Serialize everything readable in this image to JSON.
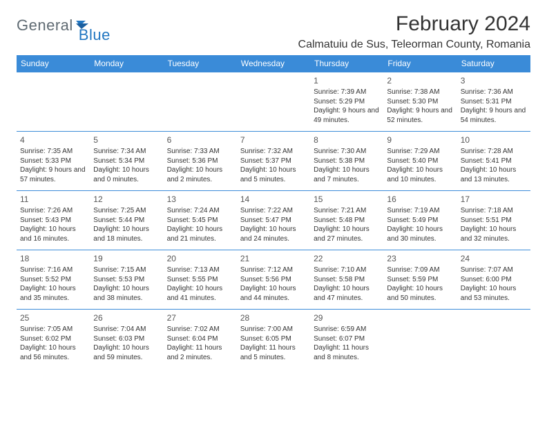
{
  "logo": {
    "part1": "General",
    "part2": "Blue"
  },
  "title": "February 2024",
  "location": "Calmatuiu de Sus, Teleorman County, Romania",
  "colors": {
    "header_bg": "#3a8bd8",
    "header_fg": "#ffffff",
    "border": "#3a8bd8",
    "logo_gray": "#5f6a72",
    "logo_blue": "#2176c1",
    "text": "#333333",
    "background": "#ffffff"
  },
  "day_headers": [
    "Sunday",
    "Monday",
    "Tuesday",
    "Wednesday",
    "Thursday",
    "Friday",
    "Saturday"
  ],
  "weeks": [
    [
      null,
      null,
      null,
      null,
      {
        "n": "1",
        "sunrise": "7:39 AM",
        "sunset": "5:29 PM",
        "day_h": "9",
        "day_m": "49"
      },
      {
        "n": "2",
        "sunrise": "7:38 AM",
        "sunset": "5:30 PM",
        "day_h": "9",
        "day_m": "52"
      },
      {
        "n": "3",
        "sunrise": "7:36 AM",
        "sunset": "5:31 PM",
        "day_h": "9",
        "day_m": "54"
      }
    ],
    [
      {
        "n": "4",
        "sunrise": "7:35 AM",
        "sunset": "5:33 PM",
        "day_h": "9",
        "day_m": "57"
      },
      {
        "n": "5",
        "sunrise": "7:34 AM",
        "sunset": "5:34 PM",
        "day_h": "10",
        "day_m": "0"
      },
      {
        "n": "6",
        "sunrise": "7:33 AM",
        "sunset": "5:36 PM",
        "day_h": "10",
        "day_m": "2"
      },
      {
        "n": "7",
        "sunrise": "7:32 AM",
        "sunset": "5:37 PM",
        "day_h": "10",
        "day_m": "5"
      },
      {
        "n": "8",
        "sunrise": "7:30 AM",
        "sunset": "5:38 PM",
        "day_h": "10",
        "day_m": "7"
      },
      {
        "n": "9",
        "sunrise": "7:29 AM",
        "sunset": "5:40 PM",
        "day_h": "10",
        "day_m": "10"
      },
      {
        "n": "10",
        "sunrise": "7:28 AM",
        "sunset": "5:41 PM",
        "day_h": "10",
        "day_m": "13"
      }
    ],
    [
      {
        "n": "11",
        "sunrise": "7:26 AM",
        "sunset": "5:43 PM",
        "day_h": "10",
        "day_m": "16"
      },
      {
        "n": "12",
        "sunrise": "7:25 AM",
        "sunset": "5:44 PM",
        "day_h": "10",
        "day_m": "18"
      },
      {
        "n": "13",
        "sunrise": "7:24 AM",
        "sunset": "5:45 PM",
        "day_h": "10",
        "day_m": "21"
      },
      {
        "n": "14",
        "sunrise": "7:22 AM",
        "sunset": "5:47 PM",
        "day_h": "10",
        "day_m": "24"
      },
      {
        "n": "15",
        "sunrise": "7:21 AM",
        "sunset": "5:48 PM",
        "day_h": "10",
        "day_m": "27"
      },
      {
        "n": "16",
        "sunrise": "7:19 AM",
        "sunset": "5:49 PM",
        "day_h": "10",
        "day_m": "30"
      },
      {
        "n": "17",
        "sunrise": "7:18 AM",
        "sunset": "5:51 PM",
        "day_h": "10",
        "day_m": "32"
      }
    ],
    [
      {
        "n": "18",
        "sunrise": "7:16 AM",
        "sunset": "5:52 PM",
        "day_h": "10",
        "day_m": "35"
      },
      {
        "n": "19",
        "sunrise": "7:15 AM",
        "sunset": "5:53 PM",
        "day_h": "10",
        "day_m": "38"
      },
      {
        "n": "20",
        "sunrise": "7:13 AM",
        "sunset": "5:55 PM",
        "day_h": "10",
        "day_m": "41"
      },
      {
        "n": "21",
        "sunrise": "7:12 AM",
        "sunset": "5:56 PM",
        "day_h": "10",
        "day_m": "44"
      },
      {
        "n": "22",
        "sunrise": "7:10 AM",
        "sunset": "5:58 PM",
        "day_h": "10",
        "day_m": "47"
      },
      {
        "n": "23",
        "sunrise": "7:09 AM",
        "sunset": "5:59 PM",
        "day_h": "10",
        "day_m": "50"
      },
      {
        "n": "24",
        "sunrise": "7:07 AM",
        "sunset": "6:00 PM",
        "day_h": "10",
        "day_m": "53"
      }
    ],
    [
      {
        "n": "25",
        "sunrise": "7:05 AM",
        "sunset": "6:02 PM",
        "day_h": "10",
        "day_m": "56"
      },
      {
        "n": "26",
        "sunrise": "7:04 AM",
        "sunset": "6:03 PM",
        "day_h": "10",
        "day_m": "59"
      },
      {
        "n": "27",
        "sunrise": "7:02 AM",
        "sunset": "6:04 PM",
        "day_h": "11",
        "day_m": "2"
      },
      {
        "n": "28",
        "sunrise": "7:00 AM",
        "sunset": "6:05 PM",
        "day_h": "11",
        "day_m": "5"
      },
      {
        "n": "29",
        "sunrise": "6:59 AM",
        "sunset": "6:07 PM",
        "day_h": "11",
        "day_m": "8"
      },
      null,
      null
    ]
  ]
}
